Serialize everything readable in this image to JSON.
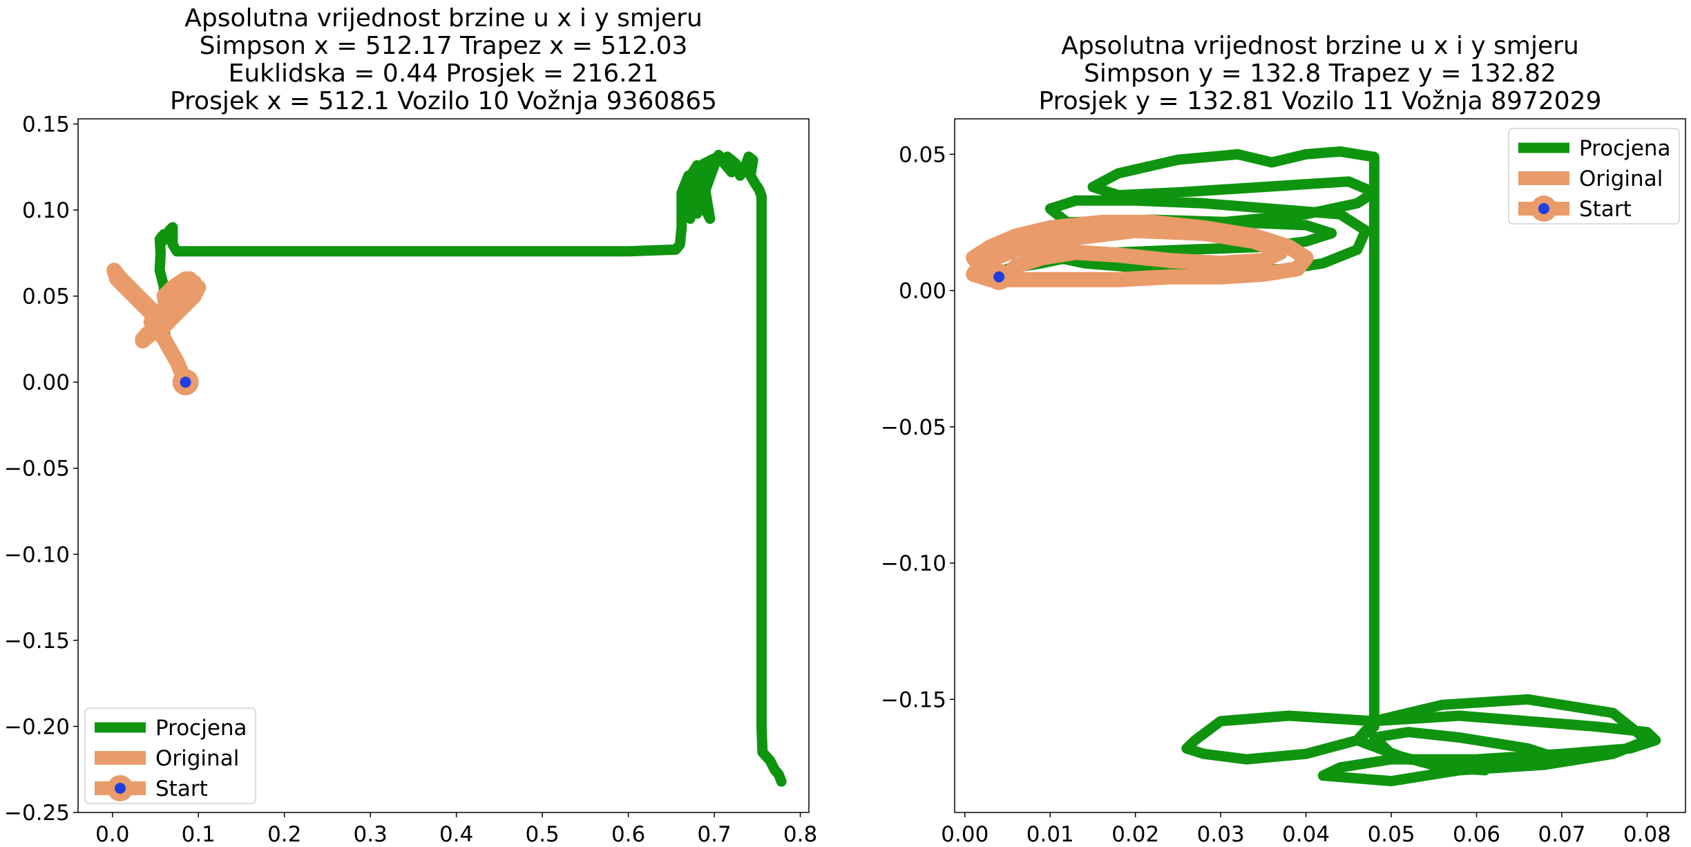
{
  "chart_data": [
    {
      "type": "line",
      "title": [
        "Apsolutna vrijednost brzine u x i y smjeru",
        "Simpson x = 512.17 Trapez x = 512.03",
        "Euklidska = 0.44 Prosjek = 216.21",
        "Prosjek x = 512.1 Vozilo 10 Vožnja 9360865"
      ],
      "xlim": [
        -0.04,
        0.81
      ],
      "ylim": [
        -0.25,
        0.153
      ],
      "xticks": [
        0.0,
        0.1,
        0.2,
        0.3,
        0.4,
        0.5,
        0.6,
        0.7,
        0.8
      ],
      "xtick_labels": [
        "0.0",
        "0.1",
        "0.2",
        "0.3",
        "0.4",
        "0.5",
        "0.6",
        "0.7",
        "0.8"
      ],
      "yticks": [
        0.15,
        0.1,
        0.05,
        0.0,
        -0.05,
        -0.1,
        -0.15,
        -0.2,
        -0.25
      ],
      "ytick_labels": [
        "0.15",
        "0.10",
        "0.05",
        "0.00",
        "−0.05",
        "−0.10",
        "−0.15",
        "−0.20",
        "−0.25"
      ],
      "legend_position": "lower-left",
      "series": [
        {
          "name": "Procjena",
          "color": "#0f940f",
          "x": [
            0.085,
            0.075,
            0.062,
            0.058,
            0.06,
            0.055,
            0.056,
            0.055,
            0.058,
            0.056,
            0.06,
            0.062,
            0.066,
            0.07,
            0.066,
            0.07,
            0.07,
            0.075,
            0.2,
            0.4,
            0.6,
            0.655,
            0.66,
            0.662,
            0.662,
            0.67,
            0.668,
            0.672,
            0.67,
            0.675,
            0.68,
            0.685,
            0.69,
            0.695,
            0.69,
            0.688,
            0.7,
            0.69,
            0.68,
            0.675,
            0.68,
            0.69,
            0.7,
            0.705,
            0.71,
            0.72,
            0.715,
            0.725,
            0.73,
            0.735,
            0.74,
            0.745,
            0.742,
            0.748,
            0.752,
            0.755,
            0.755,
            0.755,
            0.755,
            0.756,
            0.765,
            0.77,
            0.775,
            0.778
          ],
          "y": [
            0.0,
            0.012,
            0.025,
            0.04,
            0.055,
            0.065,
            0.075,
            0.083,
            0.085,
            0.08,
            0.086,
            0.083,
            0.087,
            0.082,
            0.088,
            0.09,
            0.08,
            0.076,
            0.076,
            0.076,
            0.076,
            0.077,
            0.08,
            0.09,
            0.11,
            0.12,
            0.1,
            0.095,
            0.112,
            0.122,
            0.126,
            0.12,
            0.1,
            0.095,
            0.11,
            0.127,
            0.13,
            0.125,
            0.115,
            0.1,
            0.098,
            0.112,
            0.126,
            0.132,
            0.128,
            0.122,
            0.131,
            0.127,
            0.12,
            0.124,
            0.131,
            0.129,
            0.12,
            0.115,
            0.112,
            0.108,
            0.05,
            -0.1,
            -0.2,
            -0.215,
            -0.22,
            -0.225,
            -0.228,
            -0.232
          ]
        },
        {
          "name": "Original",
          "color": "#e99b69",
          "x": [
            0.085,
            0.075,
            0.06,
            0.045,
            0.055,
            0.045,
            0.035,
            0.025,
            0.015,
            0.005,
            0.002,
            0.01,
            0.02,
            0.03,
            0.04,
            0.05,
            0.055,
            0.045,
            0.035,
            0.05,
            0.06,
            0.07,
            0.08,
            0.085,
            0.09,
            0.1,
            0.095,
            0.085,
            0.075,
            0.065,
            0.05,
            0.055,
            0.07,
            0.08,
            0.09,
            0.095,
            0.085,
            0.075,
            0.065,
            0.06,
            0.07,
            0.085,
            0.095,
            0.09,
            0.08,
            0.07,
            0.06,
            0.05,
            0.04,
            0.035,
            0.045,
            0.06,
            0.07,
            0.08,
            0.085,
            0.09,
            0.082
          ],
          "y": [
            0.0,
            0.012,
            0.025,
            0.035,
            0.03,
            0.04,
            0.045,
            0.05,
            0.055,
            0.06,
            0.065,
            0.06,
            0.055,
            0.05,
            0.045,
            0.04,
            0.035,
            0.03,
            0.025,
            0.03,
            0.035,
            0.04,
            0.045,
            0.05,
            0.055,
            0.055,
            0.05,
            0.045,
            0.04,
            0.035,
            0.03,
            0.04,
            0.05,
            0.055,
            0.06,
            0.055,
            0.05,
            0.048,
            0.045,
            0.05,
            0.055,
            0.06,
            0.058,
            0.05,
            0.045,
            0.04,
            0.035,
            0.03,
            0.028,
            0.024,
            0.028,
            0.032,
            0.038,
            0.045,
            0.05,
            0.052,
            0.046
          ]
        },
        {
          "name": "Start",
          "color": "#e99b69",
          "marker_color": "#1f3fe0",
          "x": [
            0.085
          ],
          "y": [
            0.0
          ]
        }
      ]
    },
    {
      "type": "line",
      "title": [
        "Apsolutna vrijednost brzine u x i y smjeru",
        "Simpson y = 132.8 Trapez y = 132.82",
        "Prosjek y = 132.81 Vozilo 11 Vožnja 8972029"
      ],
      "xlim": [
        -0.0012,
        0.0845
      ],
      "ylim": [
        -0.1915,
        0.063
      ],
      "xticks": [
        0.0,
        0.01,
        0.02,
        0.03,
        0.04,
        0.05,
        0.06,
        0.07,
        0.08
      ],
      "xtick_labels": [
        "0.00",
        "0.01",
        "0.02",
        "0.03",
        "0.04",
        "0.05",
        "0.06",
        "0.07",
        "0.08"
      ],
      "yticks": [
        0.05,
        0.0,
        -0.05,
        -0.1,
        -0.15
      ],
      "ytick_labels": [
        "0.05",
        "0.00",
        "−0.05",
        "−0.10",
        "−0.15"
      ],
      "legend_position": "upper-right",
      "series": [
        {
          "name": "Procjena",
          "color": "#0f940f",
          "x": [
            0.004,
            0.005,
            0.009,
            0.012,
            0.018,
            0.026,
            0.035,
            0.04,
            0.043,
            0.04,
            0.032,
            0.022,
            0.012,
            0.006,
            0.008,
            0.014,
            0.022,
            0.03,
            0.038,
            0.042,
            0.046,
            0.047,
            0.044,
            0.036,
            0.028,
            0.02,
            0.013,
            0.01,
            0.012,
            0.02,
            0.03,
            0.04,
            0.046,
            0.048,
            0.045,
            0.035,
            0.025,
            0.018,
            0.015,
            0.018,
            0.025,
            0.032,
            0.036,
            0.04,
            0.044,
            0.048,
            0.048,
            0.048,
            0.048,
            0.048,
            0.046,
            0.04,
            0.033,
            0.028,
            0.026,
            0.027,
            0.03,
            0.038,
            0.048,
            0.058,
            0.066,
            0.074,
            0.08,
            0.081,
            0.078,
            0.07,
            0.06,
            0.05,
            0.044,
            0.042,
            0.05,
            0.058,
            0.068,
            0.076,
            0.08,
            0.076,
            0.066,
            0.056,
            0.048,
            0.046,
            0.052,
            0.062,
            0.07,
            0.066,
            0.058,
            0.052,
            0.048,
            0.05,
            0.056,
            0.061
          ],
          "y": [
            0.005,
            0.008,
            0.01,
            0.012,
            0.014,
            0.015,
            0.016,
            0.018,
            0.021,
            0.024,
            0.025,
            0.026,
            0.025,
            0.02,
            0.014,
            0.01,
            0.008,
            0.007,
            0.008,
            0.01,
            0.015,
            0.022,
            0.028,
            0.03,
            0.032,
            0.033,
            0.033,
            0.03,
            0.025,
            0.024,
            0.025,
            0.028,
            0.032,
            0.036,
            0.04,
            0.038,
            0.036,
            0.035,
            0.038,
            0.043,
            0.048,
            0.05,
            0.047,
            0.05,
            0.051,
            0.049,
            0.035,
            -0.05,
            -0.15,
            -0.16,
            -0.165,
            -0.17,
            -0.172,
            -0.17,
            -0.168,
            -0.165,
            -0.158,
            -0.156,
            -0.158,
            -0.156,
            -0.158,
            -0.16,
            -0.162,
            -0.165,
            -0.168,
            -0.17,
            -0.172,
            -0.172,
            -0.175,
            -0.178,
            -0.18,
            -0.176,
            -0.174,
            -0.17,
            -0.165,
            -0.155,
            -0.15,
            -0.152,
            -0.158,
            -0.165,
            -0.172,
            -0.175,
            -0.172,
            -0.168,
            -0.164,
            -0.162,
            -0.164,
            -0.17,
            -0.175,
            -0.176
          ]
        },
        {
          "name": "Original",
          "color": "#e99b69",
          "x": [
            0.004,
            0.002,
            0.001,
            0.003,
            0.006,
            0.01,
            0.016,
            0.022,
            0.028,
            0.034,
            0.038,
            0.04,
            0.039,
            0.035,
            0.03,
            0.024,
            0.018,
            0.012,
            0.007,
            0.003,
            0.001,
            0.002,
            0.006,
            0.012,
            0.02,
            0.028,
            0.034,
            0.037,
            0.035,
            0.03,
            0.024,
            0.018,
            0.013,
            0.009,
            0.006,
            0.005
          ],
          "y": [
            0.005,
            0.008,
            0.012,
            0.016,
            0.02,
            0.023,
            0.025,
            0.025,
            0.023,
            0.02,
            0.016,
            0.012,
            0.008,
            0.006,
            0.005,
            0.005,
            0.004,
            0.004,
            0.004,
            0.004,
            0.006,
            0.01,
            0.015,
            0.019,
            0.022,
            0.021,
            0.018,
            0.014,
            0.011,
            0.01,
            0.011,
            0.013,
            0.014,
            0.012,
            0.009,
            0.006
          ]
        },
        {
          "name": "Start",
          "color": "#e99b69",
          "marker_color": "#1f3fe0",
          "x": [
            0.004
          ],
          "y": [
            0.005
          ]
        }
      ]
    }
  ]
}
